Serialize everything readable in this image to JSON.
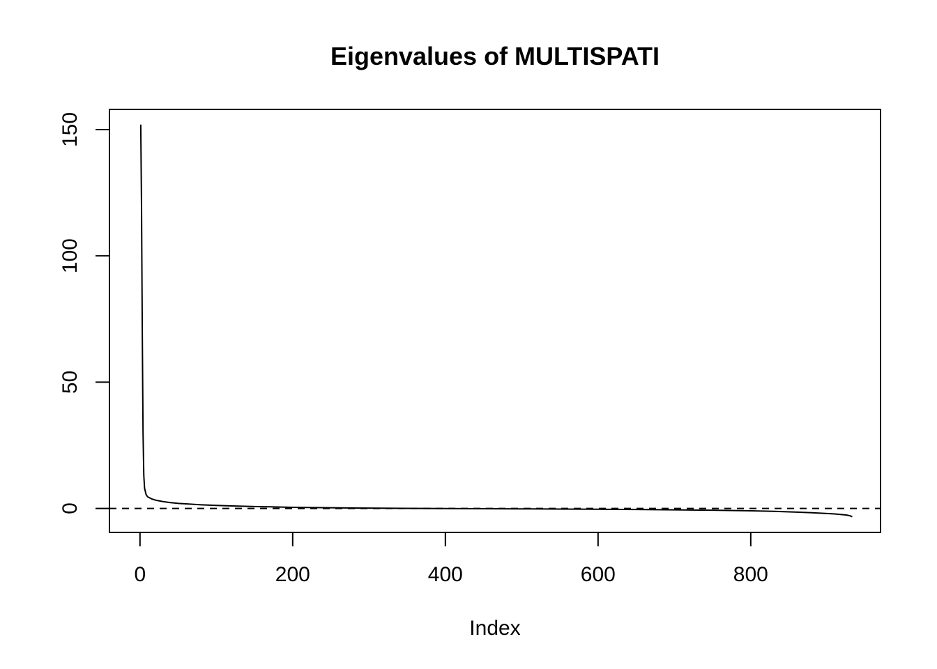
{
  "chart_data": {
    "type": "line",
    "title": "Eigenvalues of MULTISPATI",
    "xlabel": "Index",
    "ylabel": "",
    "xlim": [
      -40,
      970
    ],
    "ylim": [
      -9.5,
      158
    ],
    "xticks": [
      0,
      200,
      400,
      600,
      800
    ],
    "yticks": [
      0,
      50,
      100,
      150
    ],
    "reference_line": {
      "y": 0,
      "style": "dashed"
    },
    "grid": false,
    "legend": "none",
    "series": [
      {
        "x": [
          1,
          2,
          3,
          4,
          5,
          6,
          8,
          10,
          15,
          20,
          30,
          40,
          50,
          60,
          80,
          100,
          120,
          150,
          200,
          250,
          300,
          350,
          400,
          450,
          500,
          550,
          600,
          650,
          700,
          750,
          800,
          830,
          860,
          880,
          900,
          910,
          920,
          925,
          930,
          933
        ],
        "y": [
          152,
          120,
          70,
          30,
          13,
          8,
          5.5,
          4.6,
          3.8,
          3.3,
          2.7,
          2.3,
          2.0,
          1.8,
          1.45,
          1.2,
          1.0,
          0.75,
          0.45,
          0.25,
          0.12,
          0.02,
          -0.05,
          -0.12,
          -0.18,
          -0.25,
          -0.32,
          -0.42,
          -0.55,
          -0.72,
          -0.95,
          -1.15,
          -1.45,
          -1.7,
          -2.0,
          -2.2,
          -2.45,
          -2.6,
          -2.9,
          -3.3
        ]
      }
    ],
    "colors": {
      "line": "#000000",
      "frame": "#000000",
      "background": "#ffffff"
    }
  }
}
